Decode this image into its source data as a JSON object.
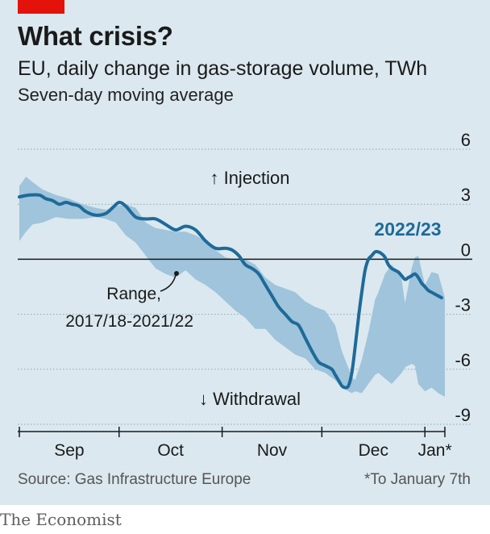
{
  "title": "What crisis?",
  "subtitle": "EU, daily change in gas-storage volume, TWh",
  "subtitle2": "Seven-day moving average",
  "source": "Source: Gas Infrastructure Europe",
  "footnote": "*To January 7th",
  "publisher": "The Economist",
  "colors": {
    "line": "#1e6a99",
    "range": "#9fc4db",
    "label": "#1e6a99",
    "brand": "#e3120b",
    "grid": "#8ea5b3"
  },
  "chart_data": {
    "type": "line",
    "title": "What crisis?",
    "ylabel": "TWh",
    "ylim": [
      -9,
      6
    ],
    "yticks": [
      6,
      3,
      0,
      -3,
      -6,
      -9
    ],
    "xlim": [
      0,
      128
    ],
    "month_boundaries": [
      0,
      30,
      61,
      91,
      122,
      128
    ],
    "xtick_labels": [
      {
        "label": "Sep",
        "x": 15
      },
      {
        "label": "Oct",
        "x": 45.5
      },
      {
        "label": "Nov",
        "x": 76
      },
      {
        "label": "Dec",
        "x": 106.5
      },
      {
        "label": "Jan*",
        "x": 125
      }
    ],
    "annotations": {
      "injection": "↑ Injection",
      "withdrawal": "↓ Withdrawal",
      "range_label": [
        "Range,",
        "2017/18-2021/22"
      ],
      "series_label": "2022/23"
    },
    "series": [
      {
        "name": "2022/23",
        "x": [
          0,
          3,
          6,
          8,
          10,
          12,
          14,
          16,
          18,
          20,
          23,
          26,
          28,
          30,
          32,
          35,
          38,
          41,
          44,
          47,
          50,
          53,
          56,
          59,
          62,
          64,
          66,
          68,
          70,
          72,
          74,
          76,
          78,
          80,
          82,
          84,
          86,
          88,
          90,
          92,
          94,
          95,
          96,
          97,
          98,
          99,
          100,
          101,
          102,
          103,
          104,
          105,
          106,
          107,
          108,
          109,
          110,
          111,
          112,
          113,
          114,
          115,
          116,
          117,
          118,
          119,
          120,
          121,
          122,
          123,
          124,
          125,
          126,
          127
        ],
        "y": [
          3.4,
          3.5,
          3.5,
          3.3,
          3.2,
          3.0,
          3.1,
          3.0,
          2.9,
          2.6,
          2.4,
          2.5,
          2.8,
          3.1,
          2.9,
          2.3,
          2.2,
          2.2,
          1.9,
          1.6,
          1.8,
          1.6,
          1.0,
          0.6,
          0.6,
          0.5,
          0.2,
          -0.3,
          -0.5,
          -0.8,
          -1.4,
          -2.0,
          -2.6,
          -3.0,
          -3.4,
          -3.6,
          -4.3,
          -5.0,
          -5.6,
          -5.8,
          -6.0,
          -6.3,
          -6.6,
          -6.9,
          -7.0,
          -6.9,
          -6.2,
          -4.8,
          -3.2,
          -1.8,
          -0.6,
          0.0,
          0.2,
          0.4,
          0.4,
          0.3,
          0.1,
          -0.3,
          -0.5,
          -0.6,
          -0.7,
          -0.9,
          -1.1,
          -1.0,
          -0.9,
          -0.8,
          -1.0,
          -1.3,
          -1.5,
          -1.7,
          -1.8,
          -1.9,
          -2.0,
          -2.1
        ]
      }
    ],
    "range": {
      "name": "Range, 2017/18-2021/22",
      "x": [
        0,
        2,
        4,
        7,
        11,
        15,
        19,
        23,
        26,
        29,
        32,
        35,
        38,
        41,
        44,
        47,
        50,
        53,
        56,
        59,
        62,
        65,
        68,
        71,
        74,
        77,
        80,
        83,
        86,
        89,
        92,
        95,
        97,
        100,
        101,
        103,
        105,
        107,
        108,
        110,
        112,
        114,
        115,
        116,
        118,
        119,
        120,
        122,
        124,
        126,
        128
      ],
      "upper": [
        4.0,
        4.5,
        4.2,
        3.8,
        3.5,
        3.3,
        3.0,
        2.8,
        2.7,
        2.9,
        3.0,
        2.8,
        2.0,
        1.7,
        1.6,
        1.5,
        1.5,
        1.3,
        1.0,
        0.5,
        0.1,
        0.0,
        0.0,
        -0.3,
        -1.0,
        -1.4,
        -1.6,
        -1.8,
        -2.3,
        -2.6,
        -2.8,
        -3.6,
        -5.0,
        -6.4,
        -6.6,
        -5.5,
        -4.0,
        -2.2,
        -1.8,
        -0.8,
        -0.3,
        -0.7,
        -1.1,
        -2.4,
        -0.5,
        0.1,
        0.2,
        -1.4,
        -0.7,
        -0.8,
        -2.1
      ],
      "lower": [
        1.0,
        1.5,
        1.9,
        2.0,
        2.3,
        2.2,
        2.2,
        2.3,
        2.2,
        2.0,
        1.3,
        0.9,
        0.2,
        -0.5,
        -0.8,
        -1.0,
        -0.6,
        -1.1,
        -1.4,
        -1.8,
        -2.3,
        -2.8,
        -3.2,
        -3.8,
        -3.8,
        -4.4,
        -4.8,
        -5.2,
        -5.4,
        -6.0,
        -6.2,
        -6.6,
        -7.0,
        -7.3,
        -7.2,
        -7.3,
        -6.8,
        -6.3,
        -6.2,
        -6.5,
        -6.8,
        -6.4,
        -6.2,
        -5.9,
        -5.7,
        -5.8,
        -6.8,
        -7.2,
        -7.0,
        -7.3,
        -7.5
      ]
    }
  }
}
